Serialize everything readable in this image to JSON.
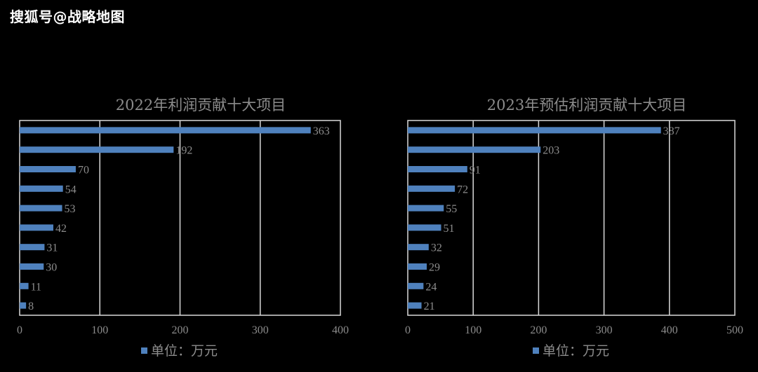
{
  "header": {
    "watermark": "搜狐号@战略地图"
  },
  "colors": {
    "bar": "#4f81bd",
    "grid": "#d9d9d9",
    "text": "#8c8c8c",
    "background": "#000000"
  },
  "chart_data": [
    {
      "type": "bar",
      "orientation": "horizontal",
      "title": "2022年利润贡献十大项目",
      "values": [
        363,
        192,
        70,
        54,
        53,
        42,
        31,
        30,
        11,
        8
      ],
      "xlim": [
        0,
        400
      ],
      "xticks": [
        "0",
        "100",
        "200",
        "300",
        "400"
      ],
      "legend": "单位：万元",
      "legend_position": "bottom",
      "grid": true
    },
    {
      "type": "bar",
      "orientation": "horizontal",
      "title": "2023年预估利润贡献十大项目",
      "values": [
        387,
        203,
        91,
        72,
        55,
        51,
        32,
        29,
        24,
        21
      ],
      "xlim": [
        0,
        500
      ],
      "xticks": [
        "0",
        "100",
        "200",
        "300",
        "400",
        "500"
      ],
      "legend": "单位：万元",
      "legend_position": "bottom",
      "grid": true
    }
  ]
}
